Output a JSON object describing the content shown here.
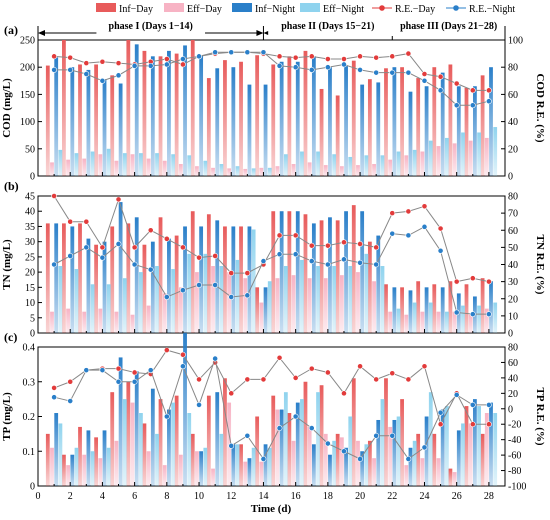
{
  "legend": {
    "items": [
      {
        "key": "inf_day",
        "label": "Inf−Day",
        "kind": "bar",
        "color": "#e85b5b"
      },
      {
        "key": "eff_day",
        "label": "Eff−Day",
        "kind": "bar",
        "color": "#f7b3c4"
      },
      {
        "key": "inf_night",
        "label": "Inf−Night",
        "kind": "bar",
        "color": "#2a7fc9"
      },
      {
        "key": "eff_night",
        "label": "Eff−Night",
        "kind": "bar",
        "color": "#8fd3ee"
      },
      {
        "key": "re_day",
        "label": "R.E.−Day",
        "kind": "line",
        "color": "#e23b3b"
      },
      {
        "key": "re_night",
        "label": "R.E.−Night",
        "kind": "line",
        "color": "#2a7fc9"
      }
    ]
  },
  "phases": [
    {
      "label": "phase I (Days 1−14)",
      "from": 0,
      "to": 14
    },
    {
      "label": "phase II (Days 15−21)",
      "from": 14,
      "to": 22
    },
    {
      "label": "phase III (Days 21−28)",
      "from": 22,
      "to": 29
    }
  ],
  "chart_data": [
    {
      "type": "bar",
      "panel_label": "(a)",
      "ylabel": "COD (mg/L)",
      "y2label": "COD R.E. (%)",
      "ylim": [
        0,
        250
      ],
      "yticks": [
        0,
        50,
        100,
        150,
        200,
        250
      ],
      "y2lim": [
        0,
        100
      ],
      "y2ticks": [
        0,
        20,
        40,
        60,
        80,
        100
      ],
      "days": [
        1,
        2,
        3,
        4,
        5,
        6,
        7,
        8,
        9,
        10,
        11,
        12,
        13,
        14,
        15,
        16,
        17,
        18,
        19,
        20,
        21,
        22,
        23,
        24,
        25,
        26,
        27,
        28
      ],
      "series": [
        {
          "name": "Inf−Day",
          "values": [
            203,
            250,
            205,
            205,
            185,
            250,
            230,
            220,
            225,
            250,
            180,
            213,
            210,
            222,
            205,
            220,
            230,
            160,
            148,
            212,
            178,
            198,
            200,
            180,
            200,
            205,
            162,
            185
          ]
        },
        {
          "name": "Eff−Day",
          "values": [
            25,
            30,
            32,
            40,
            28,
            40,
            32,
            28,
            22,
            18,
            15,
            14,
            13,
            15,
            18,
            22,
            25,
            20,
            18,
            20,
            22,
            30,
            38,
            45,
            55,
            60,
            65,
            70
          ]
        },
        {
          "name": "Inf−Night",
          "values": [
            218,
            200,
            195,
            178,
            170,
            242,
            220,
            230,
            240,
            222,
            198,
            200,
            168,
            168,
            210,
            210,
            220,
            200,
            202,
            168,
            172,
            200,
            155,
            165,
            190,
            165,
            165,
            200
          ]
        },
        {
          "name": "Eff−Night",
          "values": [
            48,
            42,
            45,
            50,
            42,
            42,
            42,
            40,
            38,
            28,
            22,
            18,
            14,
            15,
            40,
            45,
            45,
            40,
            35,
            38,
            38,
            45,
            48,
            65,
            70,
            80,
            80,
            90
          ]
        },
        {
          "name": "R.E.−Day",
          "axis": "y2",
          "values": [
            88,
            87,
            83,
            84,
            83,
            82,
            84,
            86,
            82,
            88,
            90,
            91,
            91,
            90,
            88,
            87,
            88,
            86,
            86,
            88,
            87,
            88,
            90,
            75,
            73,
            68,
            63,
            63
          ]
        },
        {
          "name": "R.E.−Night",
          "axis": "y2",
          "values": [
            78,
            78,
            75,
            70,
            74,
            81,
            81,
            82,
            86,
            88,
            91,
            91,
            91,
            91,
            81,
            80,
            78,
            80,
            82,
            78,
            76,
            76,
            76,
            70,
            63,
            52,
            52,
            55
          ]
        }
      ]
    },
    {
      "type": "bar",
      "panel_label": "(b)",
      "ylabel": "TN (mg/L)",
      "y2label": "TN R.E. (%)",
      "ylim": [
        0,
        45
      ],
      "yticks": [
        0,
        5,
        10,
        15,
        20,
        25,
        30,
        35,
        40,
        45
      ],
      "y2lim": [
        0,
        80
      ],
      "y2ticks": [
        0,
        10,
        20,
        30,
        40,
        50,
        60,
        70,
        80
      ],
      "days": [
        1,
        2,
        3,
        4,
        5,
        6,
        7,
        8,
        9,
        10,
        11,
        12,
        13,
        14,
        15,
        16,
        17,
        18,
        19,
        20,
        21,
        22,
        23,
        24,
        25,
        26,
        27,
        28
      ],
      "series": [
        {
          "name": "Inf−Day",
          "values": [
            36,
            36,
            36,
            29,
            35,
            36,
            29,
            38,
            32,
            40,
            39,
            35,
            35,
            15,
            40,
            40,
            39,
            37,
            37,
            42,
            30,
            16,
            15,
            17,
            16,
            17,
            16,
            18
          ]
        },
        {
          "name": "Eff−Day",
          "values": [
            7,
            8,
            7,
            8,
            7,
            6,
            9,
            13,
            15,
            20,
            22,
            20,
            18,
            10,
            18,
            19,
            18,
            18,
            19,
            20,
            17,
            7,
            6,
            7,
            7,
            7,
            6,
            8
          ]
        },
        {
          "name": "Inf−Night",
          "values": [
            36,
            35,
            31,
            30,
            43,
            38,
            30,
            31,
            35,
            35,
            37,
            35,
            35,
            15,
            40,
            40,
            36,
            38,
            40,
            40,
            32,
            15,
            14,
            15,
            15,
            13,
            12,
            17
          ]
        },
        {
          "name": "Eff−Night",
          "values": [
            22,
            21,
            16,
            16,
            18,
            20,
            22,
            21,
            26,
            26,
            22,
            24,
            34,
            17,
            22,
            24,
            22,
            22,
            22,
            26,
            22,
            8,
            10,
            10,
            7,
            9,
            9,
            10
          ]
        },
        {
          "name": "R.E.−Day",
          "axis": "y2",
          "values": [
            80,
            65,
            65,
            50,
            78,
            50,
            60,
            55,
            50,
            44,
            45,
            35,
            35,
            40,
            57,
            57,
            51,
            51,
            53,
            52,
            50,
            70,
            71,
            74,
            61,
            30,
            32,
            30
          ]
        },
        {
          "name": "R.E.−Night",
          "axis": "y2",
          "values": [
            40,
            45,
            50,
            44,
            52,
            40,
            37,
            21,
            25,
            28,
            28,
            21,
            22,
            42,
            46,
            46,
            42,
            40,
            43,
            41,
            40,
            58,
            57,
            62,
            48,
            12,
            11,
            11
          ]
        }
      ]
    },
    {
      "type": "bar",
      "panel_label": "(c)",
      "ylabel": "TP (mg/L)",
      "y2label": "TP R.E. (%)",
      "ylim": [
        0,
        0.4
      ],
      "yticks": [
        0,
        0.1,
        0.2,
        0.3,
        0.4
      ],
      "y2lim": [
        -100,
        80
      ],
      "y2ticks": [
        -100,
        -80,
        -60,
        -40,
        -20,
        0,
        20,
        40,
        60,
        80
      ],
      "days": [
        1,
        2,
        3,
        4,
        5,
        6,
        7,
        8,
        9,
        10,
        11,
        12,
        13,
        14,
        15,
        16,
        17,
        18,
        19,
        20,
        21,
        22,
        23,
        24,
        25,
        26,
        27,
        28
      ],
      "series": [
        {
          "name": "Inf−Day",
          "values": [
            0.15,
            0.09,
            0.17,
            0.14,
            0.27,
            0.3,
            0.18,
            0.25,
            0.26,
            0.15,
            0.26,
            0.31,
            0.12,
            0.2,
            0.26,
            0.21,
            0.3,
            0.29,
            0.15,
            0.31,
            0.13,
            0.31,
            0.25,
            0.15,
            0.15,
            0.05,
            0.23,
            0.15
          ]
        },
        {
          "name": "Eff−Day",
          "values": [
            0.11,
            0.06,
            0.09,
            0.08,
            0.13,
            0.24,
            0.1,
            0.06,
            0.09,
            0.1,
            0.05,
            0.24,
            0.07,
            0.07,
            0.22,
            0.13,
            0.17,
            0.15,
            0.14,
            0.13,
            0.08,
            0.17,
            0.06,
            0.08,
            0.08,
            0.04,
            0.18,
            0.21
          ]
        },
        {
          "name": "Inf−Night",
          "values": [
            0.21,
            0.09,
            0.16,
            0.16,
            0.37,
            0.33,
            0.28,
            0.22,
            0.44,
            0.1,
            0.27,
            0.12,
            0.08,
            0.12,
            0.22,
            0.24,
            0.12,
            0.09,
            0.11,
            0.1,
            0.19,
            0.19,
            0.11,
            0.2,
            0.22,
            0.16,
            0.25,
            0.24
          ]
        },
        {
          "name": "Eff−Night",
          "values": [
            0.18,
            0.11,
            0.1,
            0.11,
            0.25,
            0.21,
            0.15,
            0.24,
            0.21,
            0.11,
            0.15,
            0.12,
            0.11,
            0.11,
            0.27,
            0.25,
            0.27,
            0.13,
            0.2,
            0.12,
            0.25,
            0.2,
            0.13,
            0.27,
            0.23,
            0.18,
            0.23,
            0.21
          ]
        },
        {
          "name": "R.E.−Day",
          "axis": "y2",
          "values": [
            27,
            35,
            50,
            52,
            52,
            47,
            45,
            76,
            70,
            38,
            60,
            20,
            38,
            38,
            66,
            40,
            52,
            47,
            20,
            55,
            38,
            46,
            38,
            55,
            -20,
            20,
            -20,
            -20
          ]
        },
        {
          "name": "R.E.−Night",
          "axis": "y2",
          "values": [
            15,
            10,
            50,
            50,
            35,
            35,
            50,
            -10,
            55,
            5,
            65,
            -48,
            -35,
            -65,
            -25,
            -10,
            -25,
            -45,
            -55,
            -65,
            -35,
            -35,
            -65,
            -50,
            -5,
            18,
            5,
            5
          ]
        }
      ]
    }
  ],
  "xaxis": {
    "label": "Time (d)",
    "ticks": [
      0,
      2,
      4,
      6,
      8,
      10,
      12,
      14,
      16,
      18,
      20,
      22,
      24,
      26,
      28
    ],
    "lim": [
      0,
      29
    ]
  }
}
